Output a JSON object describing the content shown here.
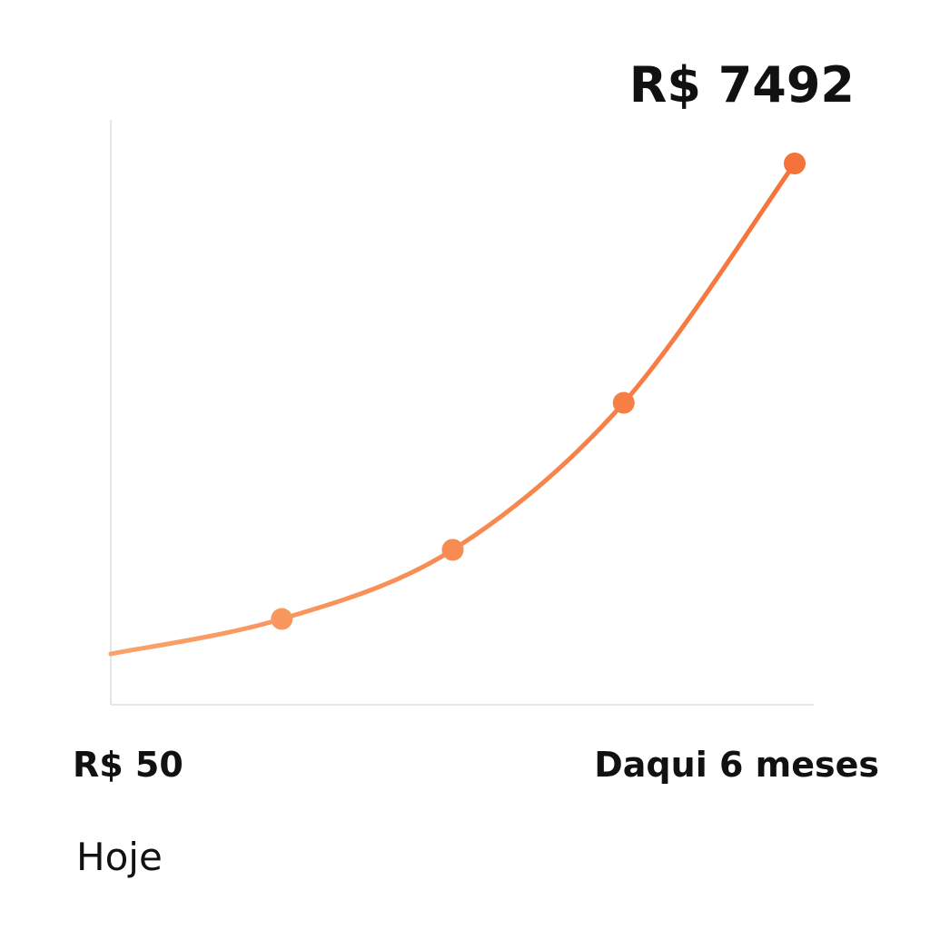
{
  "chart_data": {
    "type": "line",
    "title": "",
    "xlabel": "",
    "ylabel": "",
    "start_value_label": "R$ 50",
    "end_value_label": "R$ 7492",
    "start_time_label": "Hoje",
    "end_time_label": "Daqui 6 meses",
    "x": [
      0,
      1,
      2,
      3,
      4
    ],
    "values": [
      50,
      580,
      1630,
      3860,
      7492
    ],
    "marked_points": [
      1,
      2,
      3,
      4
    ],
    "xlim": [
      0,
      4
    ],
    "ylim": [
      -700,
      8200
    ],
    "grid": false,
    "legend": "none"
  },
  "colors": {
    "line_start": "#f9a36a",
    "line_end": "#f5733a",
    "axis": "#e6e6e6",
    "text": "#111111"
  }
}
